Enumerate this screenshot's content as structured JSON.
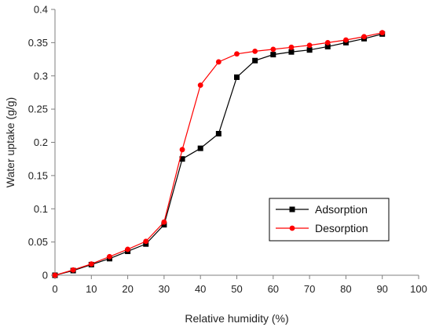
{
  "chart_data": {
    "type": "line",
    "title": "",
    "xlabel": "Relative humidity (%)",
    "ylabel": "Water uptake (g/g)",
    "xlim": [
      0,
      100
    ],
    "ylim": [
      0,
      0.4
    ],
    "x_ticks": [
      "0",
      "10",
      "20",
      "30",
      "40",
      "50",
      "60",
      "70",
      "80",
      "90",
      "100"
    ],
    "y_ticks": [
      "0",
      "0.05",
      "0.1",
      "0.15",
      "0.2",
      "0.25",
      "0.3",
      "0.35",
      "0.4"
    ],
    "grid": false,
    "legend_position": "right",
    "series": [
      {
        "name": "Adsorption",
        "color": "#000000",
        "marker": "square",
        "x": [
          0,
          5,
          10,
          15,
          20,
          25,
          30,
          35,
          40,
          45,
          50,
          55,
          60,
          65,
          70,
          75,
          80,
          85,
          90
        ],
        "y": [
          0,
          0.007,
          0.016,
          0.025,
          0.036,
          0.047,
          0.076,
          0.175,
          0.191,
          0.213,
          0.298,
          0.323,
          0.332,
          0.336,
          0.339,
          0.344,
          0.35,
          0.356,
          0.363
        ]
      },
      {
        "name": "Desorption",
        "color": "#ff0000",
        "marker": "circle",
        "x": [
          0,
          5,
          10,
          15,
          20,
          25,
          30,
          35,
          40,
          45,
          50,
          55,
          60,
          65,
          70,
          75,
          80,
          85,
          90
        ],
        "y": [
          0,
          0.008,
          0.017,
          0.028,
          0.039,
          0.051,
          0.08,
          0.189,
          0.286,
          0.321,
          0.333,
          0.337,
          0.34,
          0.343,
          0.346,
          0.35,
          0.354,
          0.359,
          0.365
        ]
      }
    ]
  }
}
